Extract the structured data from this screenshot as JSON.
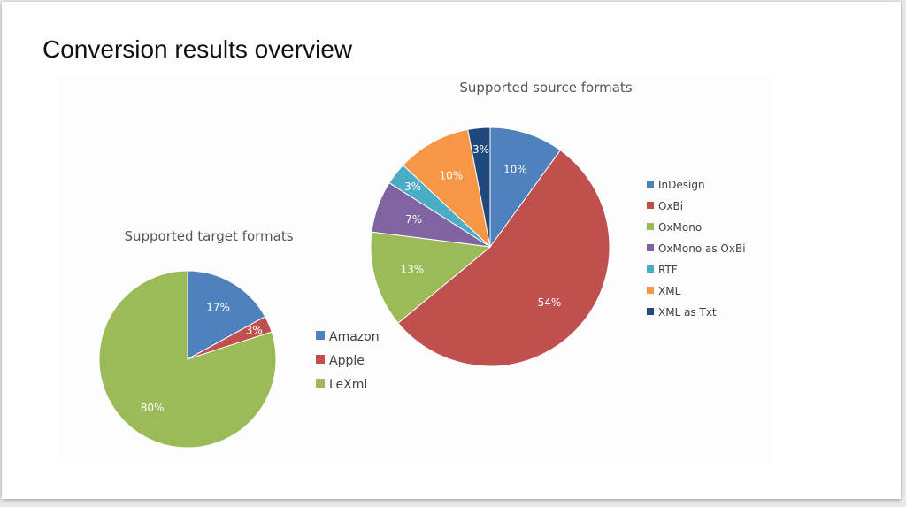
{
  "slide": {
    "title": "Conversion results overview"
  },
  "chart_data": [
    {
      "type": "pie",
      "title": "Supported target formats",
      "categories": [
        "Amazon",
        "Apple",
        "LeXml"
      ],
      "values": [
        17,
        3,
        80
      ],
      "labels": [
        "17%",
        "3%",
        "80%"
      ],
      "colors": [
        "#4F81BD",
        "#C0504D",
        "#9BBB59"
      ],
      "legend": "right"
    },
    {
      "type": "pie",
      "title": "Supported source formats",
      "categories": [
        "InDesign",
        "OxBi",
        "OxMono",
        "OxMono as OxBi",
        "RTF",
        "XML",
        "XML as Txt"
      ],
      "values": [
        10,
        54,
        13,
        7,
        3,
        10,
        3
      ],
      "labels": [
        "10%",
        "54%",
        "13%",
        "7%",
        "3%",
        "10%",
        "3%"
      ],
      "colors": [
        "#4F81BD",
        "#C0504D",
        "#9BBB59",
        "#8064A2",
        "#4BACC6",
        "#F79646",
        "#1F497D"
      ],
      "legend": "right"
    }
  ]
}
